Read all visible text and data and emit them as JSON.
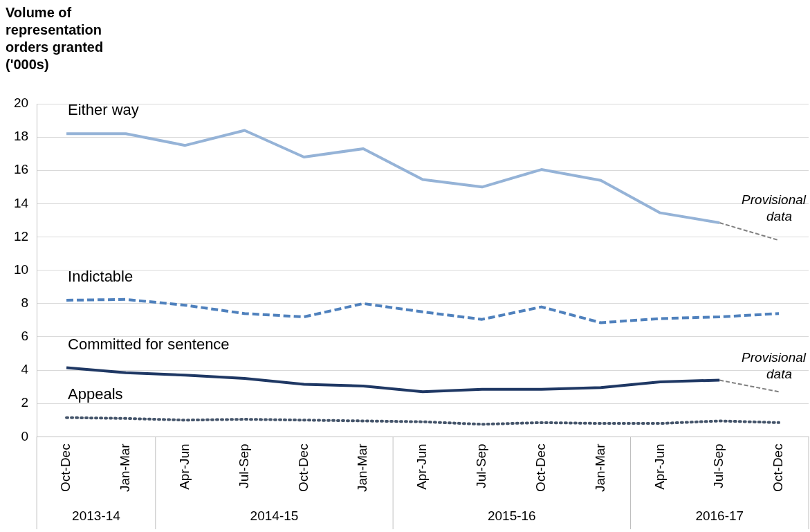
{
  "chart_data": {
    "type": "line",
    "ylabel": "Volume of representation orders granted ('000s)",
    "categories": [
      "Oct-Dec",
      "Jan-Mar",
      "Apr-Jun",
      "Jul-Sep",
      "Oct-Dec",
      "Jan-Mar",
      "Apr-Jun",
      "Jul-Sep",
      "Oct-Dec",
      "Jan-Mar",
      "Apr-Jun",
      "Jul-Sep",
      "Oct-Dec"
    ],
    "series": [
      {
        "name": "Either way",
        "color": "#95b3d7",
        "line_style": "solid",
        "values": [
          18.2,
          18.2,
          17.5,
          18.4,
          16.8,
          17.3,
          15.45,
          15.0,
          16.05,
          15.4,
          13.45,
          12.85,
          null
        ]
      },
      {
        "color": "#7f7f7f",
        "line_style": "dashed",
        "values": [
          null,
          null,
          null,
          null,
          null,
          null,
          null,
          null,
          null,
          null,
          null,
          12.85,
          11.8
        ]
      },
      {
        "name": "Indictable",
        "color": "#4f81bd",
        "line_style": "dashed",
        "values": [
          8.2,
          8.25,
          7.9,
          7.4,
          7.2,
          8.0,
          7.5,
          7.05,
          7.8,
          6.85,
          7.1,
          7.2,
          7.4
        ]
      },
      {
        "name": "Committed for sentence",
        "color": "#1f3864",
        "line_style": "solid",
        "values": [
          4.15,
          3.85,
          3.7,
          3.5,
          3.15,
          3.05,
          2.7,
          2.85,
          2.85,
          2.95,
          3.3,
          3.4,
          null
        ]
      },
      {
        "color": "#7f7f7f",
        "line_style": "dashed",
        "values": [
          null,
          null,
          null,
          null,
          null,
          null,
          null,
          null,
          null,
          null,
          null,
          3.4,
          2.7
        ]
      },
      {
        "name": "Appeals",
        "color": "#44546a",
        "line_style": "dotted",
        "values": [
          1.15,
          1.1,
          1.0,
          1.05,
          1.0,
          0.95,
          0.9,
          0.75,
          0.85,
          0.8,
          0.8,
          0.95,
          0.85
        ]
      }
    ],
    "ylim": [
      0,
      20
    ],
    "yticks": [
      0,
      2,
      4,
      6,
      8,
      10,
      12,
      14,
      16,
      18,
      20
    ],
    "grid": "y",
    "legend": false,
    "marker": "none",
    "annotations": [
      "Provisional data",
      "Provisional data",
      "2013-14",
      "2014-15",
      "2015-16",
      "2016-17"
    ]
  }
}
